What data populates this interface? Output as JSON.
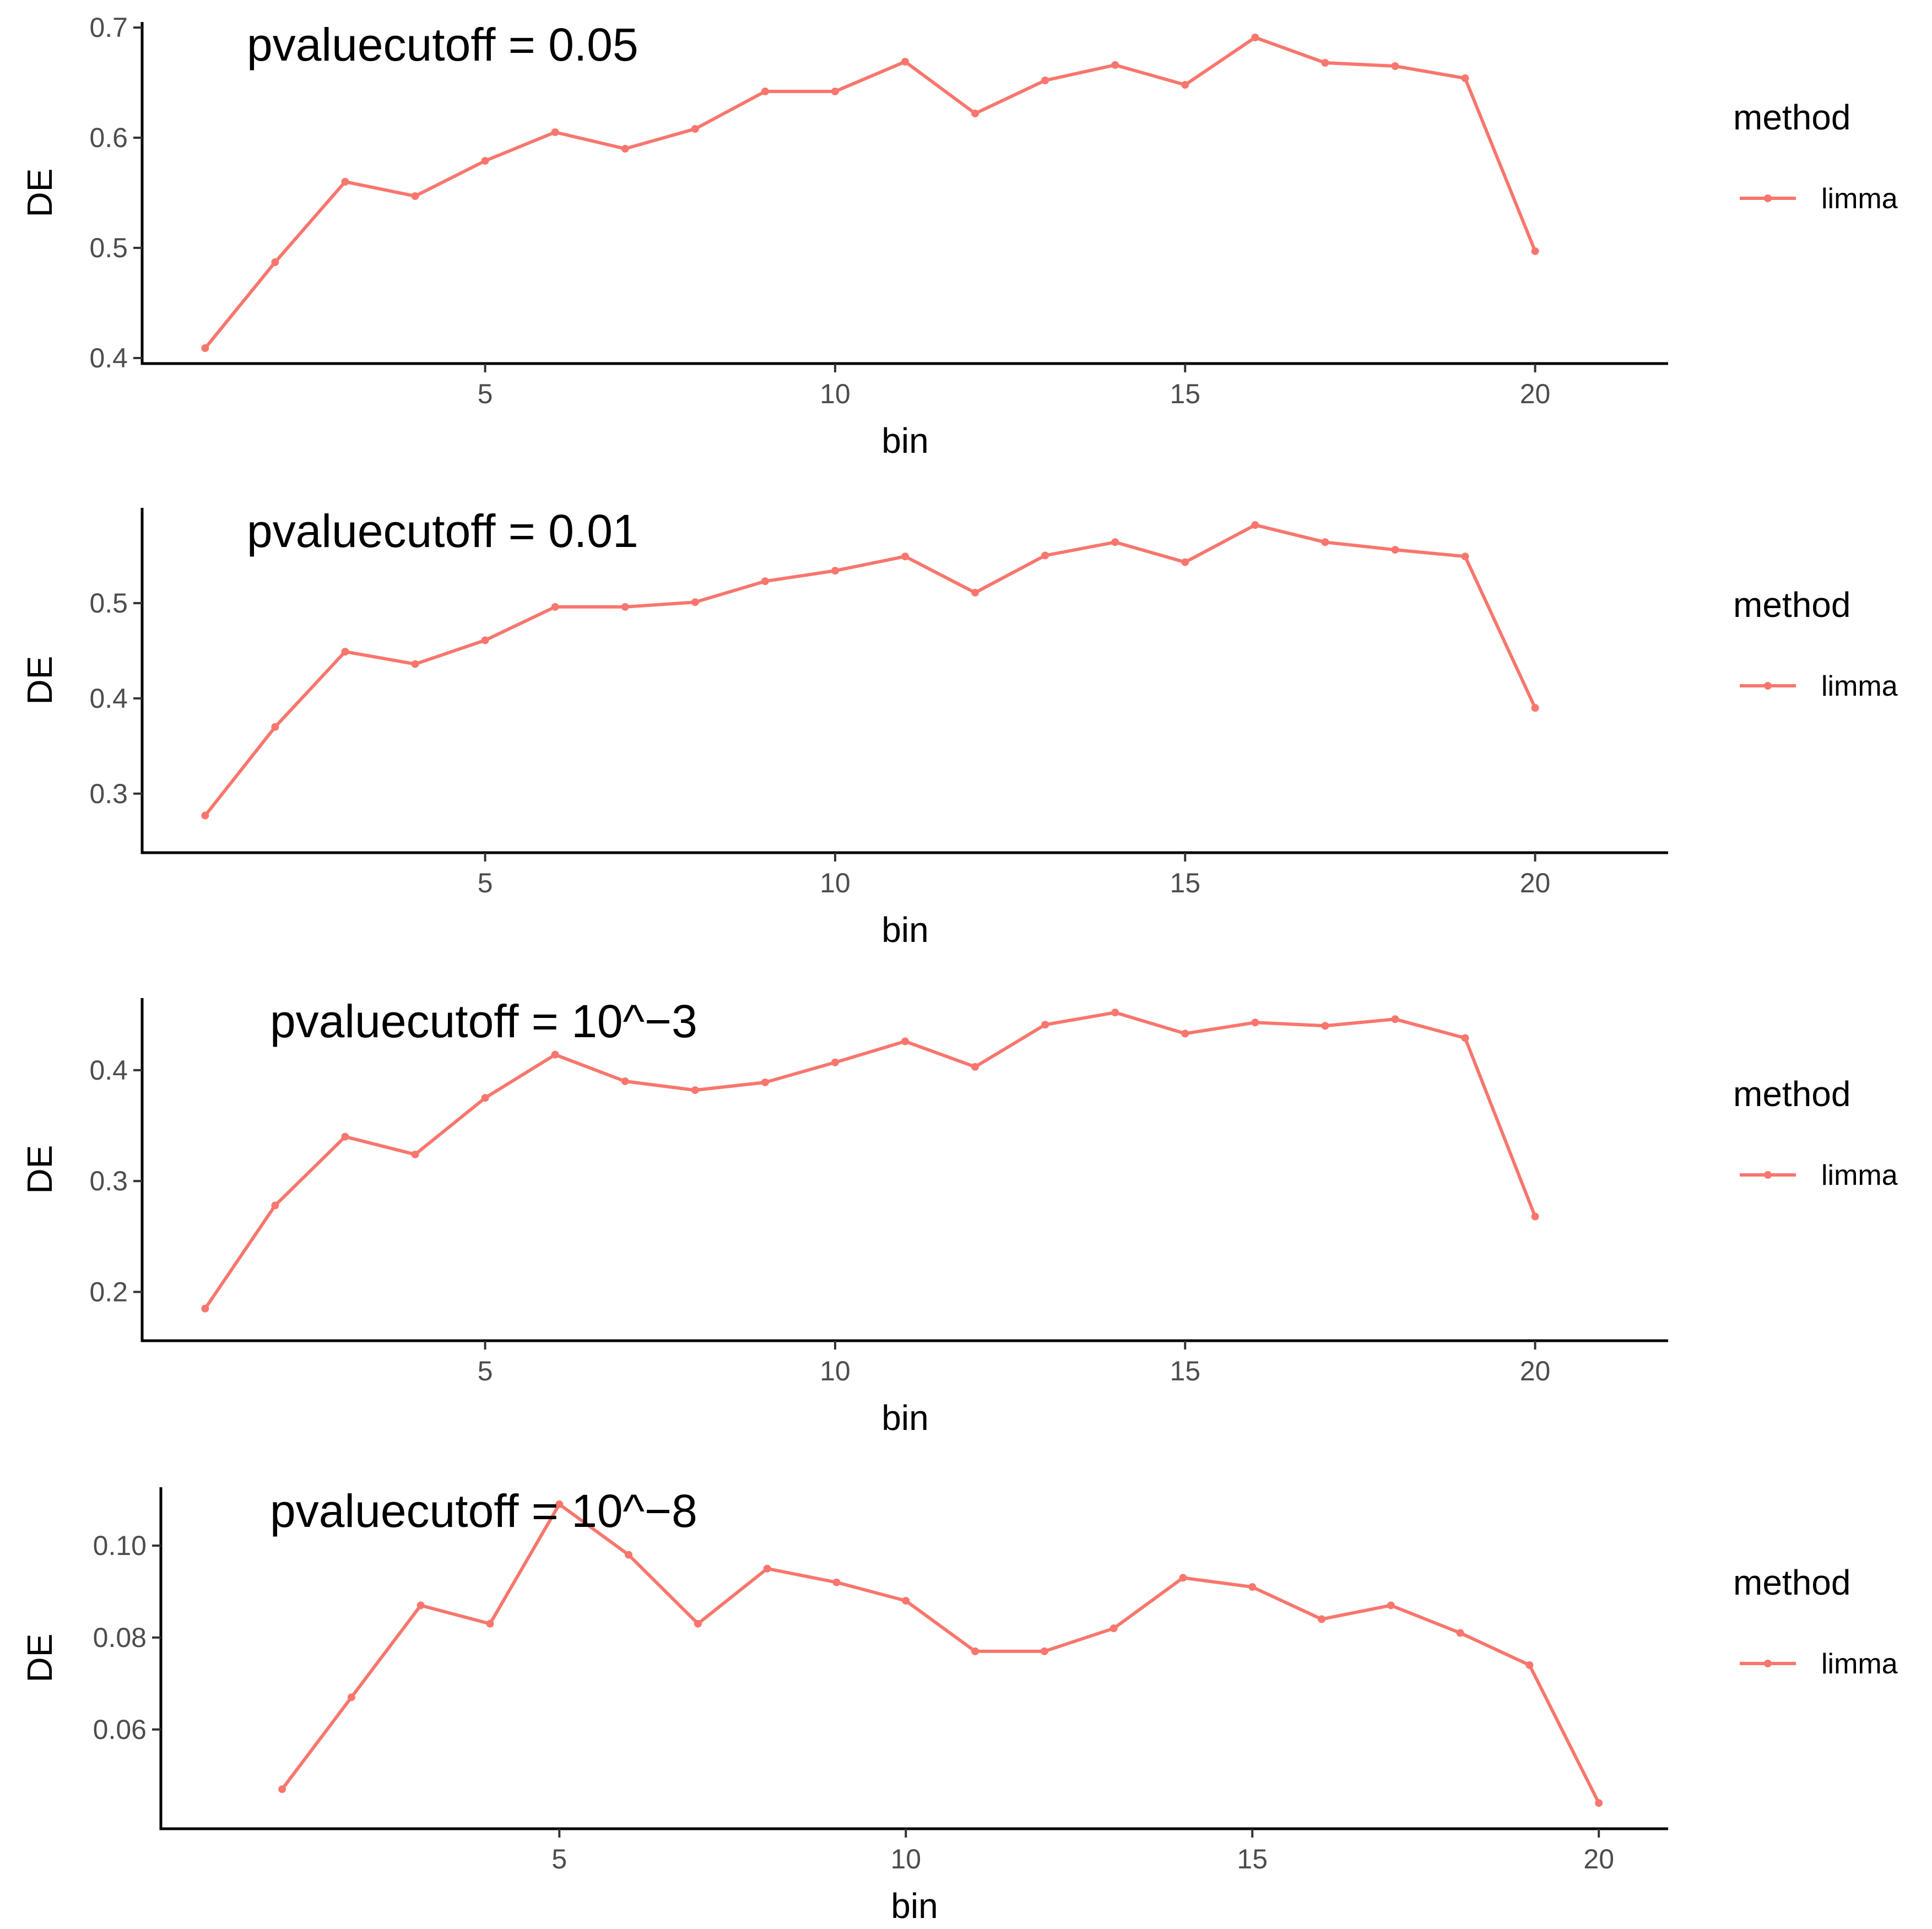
{
  "chart_data": [
    {
      "type": "line",
      "title": "pvaluecutoff = 0.05",
      "xlabel": "bin",
      "ylabel": "DE",
      "x": [
        1,
        2,
        3,
        4,
        5,
        6,
        7,
        8,
        9,
        10,
        11,
        12,
        13,
        14,
        15,
        16,
        17,
        18,
        19,
        20
      ],
      "series": [
        {
          "name": "limma",
          "values": [
            0.409,
            0.487,
            0.56,
            0.547,
            0.579,
            0.605,
            0.59,
            0.608,
            0.642,
            0.642,
            0.669,
            0.622,
            0.652,
            0.666,
            0.648,
            0.691,
            0.668,
            0.665,
            0.654,
            0.497
          ]
        }
      ],
      "xlim": [
        0.1,
        21.9
      ],
      "ylim": [
        0.395,
        0.705
      ],
      "xticks": [
        5,
        10,
        15,
        20
      ],
      "xtick_labels": [
        "5",
        "10",
        "15",
        "20"
      ],
      "yticks": [
        0.4,
        0.5,
        0.6,
        0.7
      ],
      "ytick_labels": [
        "0.4",
        "0.5",
        "0.6",
        "0.7"
      ],
      "grid": false,
      "legend": {
        "title": "method",
        "position": "right"
      },
      "color": "#F8766D"
    },
    {
      "type": "line",
      "title": "pvaluecutoff = 0.01",
      "xlabel": "bin",
      "ylabel": "DE",
      "x": [
        1,
        2,
        3,
        4,
        5,
        6,
        7,
        8,
        9,
        10,
        11,
        12,
        13,
        14,
        15,
        16,
        17,
        18,
        19,
        20
      ],
      "series": [
        {
          "name": "limma",
          "values": [
            0.277,
            0.37,
            0.449,
            0.436,
            0.461,
            0.496,
            0.496,
            0.501,
            0.523,
            0.534,
            0.549,
            0.511,
            0.55,
            0.564,
            0.543,
            0.582,
            0.564,
            0.556,
            0.549,
            0.39
          ]
        }
      ],
      "xlim": [
        0.1,
        21.9
      ],
      "ylim": [
        0.238,
        0.6
      ],
      "xticks": [
        5,
        10,
        15,
        20
      ],
      "xtick_labels": [
        "5",
        "10",
        "15",
        "20"
      ],
      "yticks": [
        0.3,
        0.4,
        0.5
      ],
      "ytick_labels": [
        "0.3",
        "0.4",
        "0.5"
      ],
      "grid": false,
      "legend": {
        "title": "method",
        "position": "right"
      },
      "color": "#F8766D"
    },
    {
      "type": "line",
      "title": "pvaluecutoff = 10^−3",
      "xlabel": "bin",
      "ylabel": "DE",
      "x": [
        1,
        2,
        3,
        4,
        5,
        6,
        7,
        8,
        9,
        10,
        11,
        12,
        13,
        14,
        15,
        16,
        17,
        18,
        19,
        20
      ],
      "series": [
        {
          "name": "limma",
          "values": [
            0.185,
            0.278,
            0.34,
            0.324,
            0.375,
            0.414,
            0.39,
            0.382,
            0.389,
            0.407,
            0.426,
            0.403,
            0.441,
            0.452,
            0.433,
            0.443,
            0.44,
            0.446,
            0.429,
            0.268
          ]
        }
      ],
      "xlim": [
        0.1,
        21.9
      ],
      "ylim": [
        0.156,
        0.465
      ],
      "xticks": [
        5,
        10,
        15,
        20
      ],
      "xtick_labels": [
        "5",
        "10",
        "15",
        "20"
      ],
      "yticks": [
        0.2,
        0.3,
        0.4
      ],
      "ytick_labels": [
        "0.2",
        "0.3",
        "0.4"
      ],
      "grid": false,
      "legend": {
        "title": "method",
        "position": "right"
      },
      "color": "#F8766D"
    },
    {
      "type": "line",
      "title": "pvaluecutoff = 10^−8",
      "xlabel": "bin",
      "ylabel": "DE",
      "x": [
        1,
        2,
        3,
        4,
        5,
        6,
        7,
        8,
        9,
        10,
        11,
        12,
        13,
        14,
        15,
        16,
        17,
        18,
        19,
        20
      ],
      "series": [
        {
          "name": "limma",
          "values": [
            0.047,
            0.067,
            0.087,
            0.083,
            0.109,
            0.098,
            0.083,
            0.095,
            0.092,
            0.088,
            0.077,
            0.077,
            0.082,
            0.093,
            0.091,
            0.084,
            0.087,
            0.081,
            0.074,
            0.044
          ]
        }
      ],
      "xlim": [
        -0.75,
        21.0
      ],
      "ylim": [
        0.0384,
        0.1127
      ],
      "xticks": [
        5,
        10,
        15,
        20
      ],
      "xtick_labels": [
        "5",
        "10",
        "15",
        "20"
      ],
      "yticks": [
        0.06,
        0.08,
        0.1
      ],
      "ytick_labels": [
        "0.06",
        "0.08",
        "0.10"
      ],
      "grid": false,
      "legend": {
        "title": "method",
        "position": "right"
      },
      "color": "#F8766D"
    }
  ]
}
